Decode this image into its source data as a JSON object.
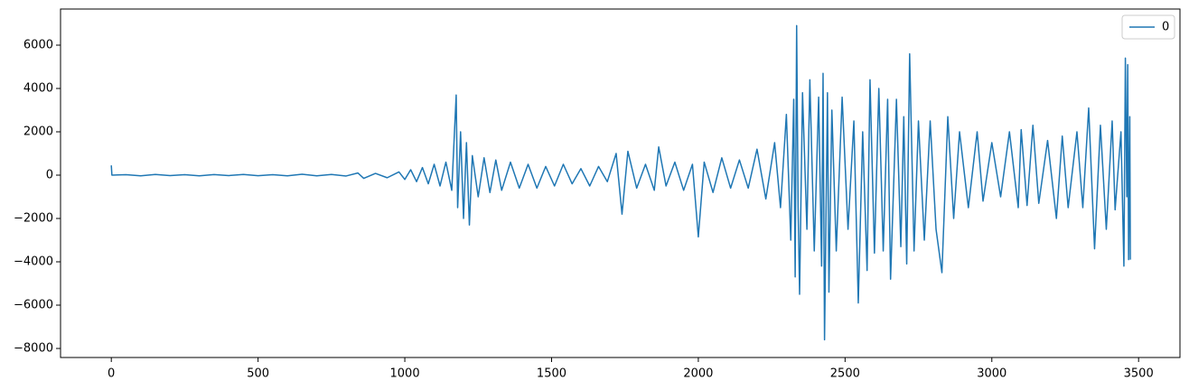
{
  "chart_data": {
    "type": "line",
    "x": [
      0,
      2,
      50,
      100,
      150,
      200,
      250,
      300,
      350,
      400,
      450,
      500,
      550,
      600,
      650,
      700,
      750,
      800,
      840,
      860,
      900,
      940,
      980,
      1000,
      1020,
      1040,
      1060,
      1080,
      1100,
      1120,
      1140,
      1160,
      1175,
      1180,
      1190,
      1200,
      1210,
      1220,
      1230,
      1250,
      1270,
      1290,
      1310,
      1330,
      1360,
      1390,
      1420,
      1450,
      1480,
      1510,
      1540,
      1570,
      1600,
      1630,
      1660,
      1690,
      1720,
      1740,
      1760,
      1790,
      1820,
      1850,
      1865,
      1890,
      1920,
      1950,
      1980,
      2000,
      2020,
      2050,
      2080,
      2110,
      2140,
      2170,
      2200,
      2230,
      2260,
      2280,
      2300,
      2315,
      2325,
      2330,
      2335,
      2340,
      2345,
      2355,
      2370,
      2380,
      2395,
      2410,
      2420,
      2425,
      2430,
      2440,
      2445,
      2455,
      2470,
      2490,
      2510,
      2530,
      2545,
      2560,
      2575,
      2585,
      2600,
      2615,
      2630,
      2645,
      2655,
      2675,
      2690,
      2700,
      2710,
      2720,
      2735,
      2750,
      2770,
      2790,
      2810,
      2830,
      2850,
      2870,
      2890,
      2920,
      2950,
      2970,
      3000,
      3030,
      3060,
      3090,
      3100,
      3120,
      3140,
      3160,
      3190,
      3220,
      3240,
      3260,
      3290,
      3310,
      3330,
      3350,
      3370,
      3390,
      3410,
      3420,
      3440,
      3450,
      3455,
      3460,
      3463,
      3466,
      3470,
      3472
    ],
    "series": [
      {
        "name": "0",
        "color": "#1f77b4",
        "values": [
          450,
          0,
          20,
          -30,
          30,
          -20,
          20,
          -30,
          25,
          -20,
          30,
          -25,
          20,
          -30,
          40,
          -30,
          30,
          -40,
          100,
          -150,
          80,
          -120,
          150,
          -200,
          250,
          -300,
          350,
          -400,
          500,
          -500,
          600,
          -700,
          3700,
          -1500,
          2000,
          -2000,
          1500,
          -2300,
          900,
          -1000,
          800,
          -800,
          700,
          -700,
          600,
          -600,
          500,
          -600,
          400,
          -500,
          500,
          -400,
          300,
          -500,
          400,
          -300,
          1000,
          -1800,
          1100,
          -600,
          500,
          -700,
          1300,
          -500,
          600,
          -700,
          500,
          -2850,
          600,
          -800,
          800,
          -600,
          700,
          -600,
          1200,
          -1100,
          1500,
          -1500,
          2800,
          -3000,
          3500,
          -4700,
          6900,
          -1500,
          -5500,
          3800,
          -2500,
          4400,
          -3500,
          3600,
          -4200,
          4700,
          -7600,
          3800,
          -5400,
          3000,
          -3500,
          3600,
          -2500,
          2500,
          -5900,
          2000,
          -4400,
          4400,
          -3600,
          4000,
          -3500,
          3500,
          -4800,
          3500,
          -3300,
          2700,
          -4100,
          5600,
          -3500,
          2500,
          -3000,
          2500,
          -2500,
          -4500,
          2700,
          -2000,
          2000,
          -1500,
          2000,
          -1200,
          1500,
          -1000,
          2000,
          -1500,
          2100,
          -1400,
          2300,
          -1300,
          1600,
          -2000,
          1800,
          -1500,
          2000,
          -1500,
          3100,
          -3400,
          2300,
          -2500,
          2500,
          -1600,
          2000,
          -4200,
          5400,
          -1000,
          5100,
          -3900,
          2700,
          -3900
        ]
      }
    ],
    "xlim": [
      -173,
      3641
    ],
    "ylim": [
      -8417,
      7667
    ],
    "xticks": [
      0,
      500,
      1000,
      1500,
      2000,
      2500,
      3000,
      3500
    ],
    "yticks": [
      {
        "value": -8000,
        "label": "−8000"
      },
      {
        "value": -6000,
        "label": "−6000"
      },
      {
        "value": -4000,
        "label": "−4000"
      },
      {
        "value": -2000,
        "label": "−2000"
      },
      0,
      2000,
      4000,
      6000
    ],
    "grid": false,
    "legend": "upper right"
  }
}
